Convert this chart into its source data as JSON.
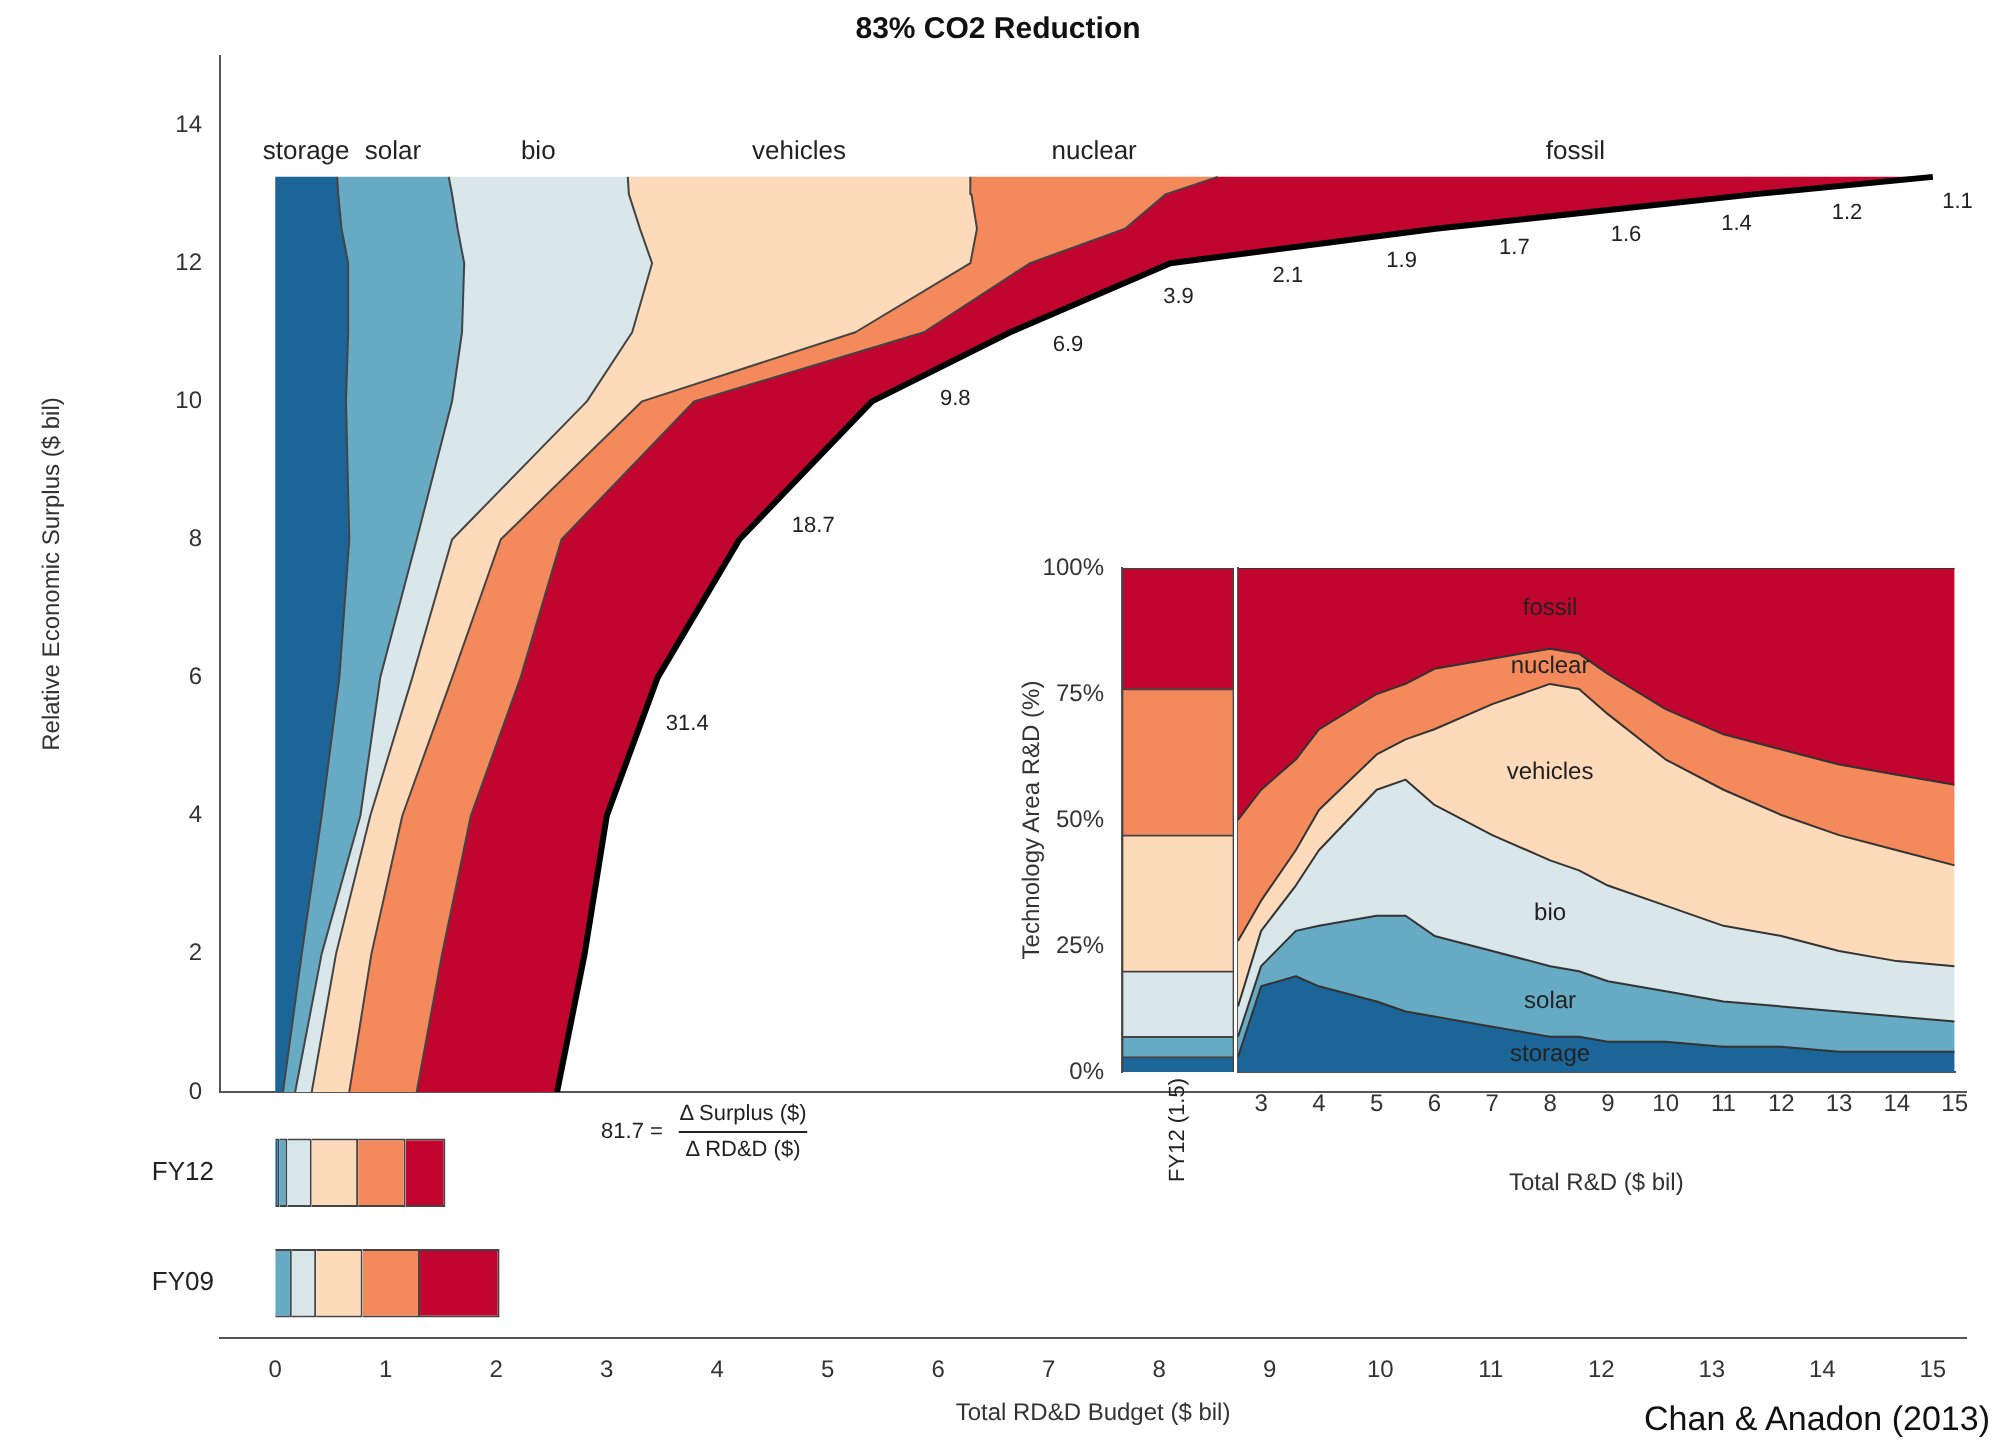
{
  "chart_data": [
    {
      "type": "area",
      "orientation": "horizontal",
      "stacked": true,
      "title": "83% CO2 Reduction",
      "ylabel": "Relative Economic Surplus ($ bil)",
      "x": [
        0,
        2,
        4,
        6,
        8,
        10,
        11,
        12,
        12.5,
        13,
        13.25
      ],
      "series": [
        {
          "name": "storage",
          "color": "#1c6598",
          "values": [
            0.07,
            0.24,
            0.42,
            0.58,
            0.67,
            0.64,
            0.66,
            0.66,
            0.6,
            0.57,
            0.56
          ]
        },
        {
          "name": "solar",
          "color": "#67aac3",
          "values": [
            0.11,
            0.18,
            0.35,
            0.37,
            0.61,
            0.96,
            1.03,
            1.05,
            1.05,
            1.03,
            1.01
          ]
        },
        {
          "name": "bio",
          "color": "#d9e6ea",
          "values": [
            0.15,
            0.13,
            0.09,
            0.29,
            0.32,
            1.22,
            1.54,
            1.7,
            1.65,
            1.6,
            1.62
          ]
        },
        {
          "name": "vehicles",
          "color": "#fddbba",
          "values": [
            0.34,
            0.32,
            0.29,
            0.36,
            0.44,
            0.5,
            2.02,
            2.88,
            3.05,
            3.1,
            3.1
          ]
        },
        {
          "name": "nuclear",
          "color": "#f4895c",
          "values": [
            0.61,
            0.64,
            0.62,
            0.62,
            0.55,
            0.47,
            0.62,
            0.54,
            1.34,
            1.76,
            2.24
          ]
        },
        {
          "name": "fossil",
          "color": "#c2052e",
          "values": [
            1.27,
            1.29,
            1.23,
            1.24,
            1.61,
            1.61,
            0.78,
            1.27,
            2.81,
            5.34,
            6.47
          ]
        }
      ],
      "xlim": [
        -0.5,
        15.3
      ],
      "xticks": [
        0,
        1,
        2,
        3,
        4,
        5,
        6,
        7,
        8,
        9,
        10,
        11,
        12,
        13,
        14,
        15
      ],
      "ylim": [
        0,
        15
      ],
      "yticks": [
        0,
        2,
        4,
        6,
        8,
        10,
        12,
        14
      ],
      "tick_labels": "y",
      "annotations": [
        {
          "text": "81.7 =",
          "x": 2.55,
          "y": 0
        },
        {
          "text": "31.4",
          "x": 3.39,
          "y": 5.68
        },
        {
          "text": "18.7",
          "x": 4.53,
          "y": 8.55
        },
        {
          "text": "9.8",
          "x": 5.87,
          "y": 10.38
        },
        {
          "text": "6.9",
          "x": 6.89,
          "y": 11.17
        },
        {
          "text": "3.9",
          "x": 7.89,
          "y": 11.86
        },
        {
          "text": "2.1",
          "x": 8.88,
          "y": 12.16
        },
        {
          "text": "1.9",
          "x": 9.91,
          "y": 12.38
        },
        {
          "text": "1.7",
          "x": 10.93,
          "y": 12.57
        },
        {
          "text": "1.6",
          "x": 11.94,
          "y": 12.75
        },
        {
          "text": "1.4",
          "x": 12.94,
          "y": 12.92
        },
        {
          "text": "1.2",
          "x": 13.94,
          "y": 13.08
        },
        {
          "text": "1.1",
          "x": 14.94,
          "y": 13.24
        },
        "Δ Surplus ($)",
        "Δ RD&D ($)",
        "Chan & Anadon (2013)"
      ]
    },
    {
      "type": "bar",
      "orientation": "horizontal",
      "stacked": true,
      "categories": [
        "FY12",
        "FY09"
      ],
      "xlabel": "Total RD&D Budget ($ bil)",
      "series": [
        {
          "color": "#1c6598",
          "values": [
            0.04,
            0
          ]
        },
        {
          "color": "#67aac3",
          "values": [
            0.07,
            0.15
          ]
        },
        {
          "color": "#d9e6ea",
          "values": [
            0.22,
            0.22
          ]
        },
        {
          "color": "#fddbba",
          "values": [
            0.42,
            0.42
          ]
        },
        {
          "color": "#f4895c",
          "values": [
            0.43,
            0.52
          ]
        },
        {
          "color": "#c2052e",
          "values": [
            0.36,
            0.72
          ]
        }
      ],
      "xlim": [
        -0.5,
        15.3
      ],
      "xticks": [
        0,
        1,
        2,
        3,
        4,
        5,
        6,
        7,
        8,
        9,
        10,
        11,
        12,
        13,
        14,
        15
      ]
    },
    {
      "type": "bar",
      "stacked": true,
      "categories": [
        "FY12 (1.5)"
      ],
      "ylabel": "Technology Area R&D (%)",
      "series": [
        {
          "color": "#1c6598",
          "values": [
            3
          ]
        },
        {
          "color": "#67aac3",
          "values": [
            4
          ]
        },
        {
          "color": "#d9e6ea",
          "values": [
            13
          ]
        },
        {
          "color": "#fddbba",
          "values": [
            27
          ]
        },
        {
          "color": "#f4895c",
          "values": [
            29
          ]
        },
        {
          "color": "#c2052e",
          "values": [
            24
          ]
        }
      ],
      "ylim": [
        0,
        100
      ],
      "yticks": [
        {
          "value": 0,
          "label": "0%"
        },
        {
          "value": 25,
          "label": "25%"
        },
        {
          "value": 50,
          "label": "50%"
        },
        {
          "value": 75,
          "label": "75%"
        },
        {
          "value": 100,
          "label": "100%"
        }
      ]
    },
    {
      "type": "area",
      "stacked": true,
      "xlabel": "Total R&D ($ bil)",
      "x": [
        2.6,
        3,
        3.6,
        4,
        5,
        5.5,
        6,
        7,
        8,
        8.5,
        9,
        10,
        11,
        12,
        13,
        14,
        15
      ],
      "series": [
        {
          "name": "storage",
          "color": "#1c6598",
          "values": [
            3,
            17,
            19,
            17,
            14,
            12,
            11,
            9,
            7,
            7,
            6,
            6,
            5,
            5,
            4,
            4,
            4
          ]
        },
        {
          "name": "solar",
          "color": "#67aac3",
          "values": [
            4,
            4,
            9,
            12,
            17,
            19,
            16,
            15,
            14,
            13,
            12,
            10,
            9,
            8,
            8,
            7,
            6
          ]
        },
        {
          "name": "bio",
          "color": "#d9e6ea",
          "values": [
            6,
            7,
            9,
            15,
            25,
            27,
            26,
            23,
            21,
            20,
            19,
            17,
            15,
            14,
            12,
            11,
            11
          ]
        },
        {
          "name": "vehicles",
          "color": "#fddbba",
          "values": [
            13,
            6,
            7,
            8,
            7,
            8,
            15,
            26,
            35,
            36,
            34,
            29,
            27,
            24,
            23,
            22,
            20
          ]
        },
        {
          "name": "nuclear",
          "color": "#f4895c",
          "values": [
            24,
            22,
            18,
            16,
            12,
            11,
            12,
            9,
            7,
            7,
            8,
            10,
            11,
            13,
            14,
            15,
            16
          ]
        },
        {
          "name": "fossil",
          "color": "#c2052e",
          "values": [
            50,
            44,
            38,
            32,
            25,
            23,
            20,
            18,
            16,
            17,
            21,
            28,
            33,
            36,
            39,
            41,
            43
          ]
        }
      ],
      "xlim": [
        2.6,
        15
      ],
      "xticks": [
        3,
        4,
        5,
        6,
        7,
        8,
        9,
        10,
        11,
        12,
        13,
        14,
        15
      ],
      "ylim": [
        0,
        100
      ],
      "tick_labels": "x"
    }
  ]
}
